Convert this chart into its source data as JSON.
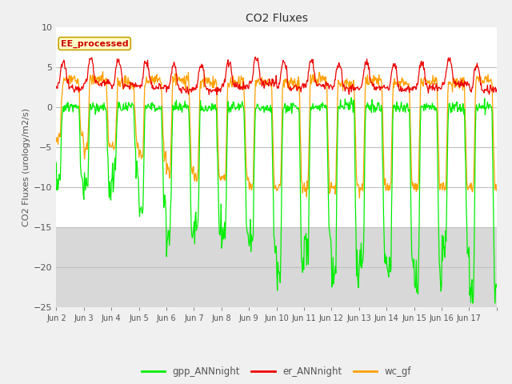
{
  "title": "CO2 Fluxes",
  "ylabel": "CO2 Fluxes (urology/m2/s)",
  "ylim": [
    -25,
    10
  ],
  "yticks": [
    -25,
    -20,
    -15,
    -10,
    -5,
    0,
    5,
    10
  ],
  "bg_color": "#f0f0f0",
  "ax_bg_color": "#e8e8e8",
  "ax_bg_upper": "#ffffff",
  "ax_bg_lower": "#d8d8d8",
  "legend_box_label": "EE_processed",
  "legend_box_facecolor": "#ffffc8",
  "legend_box_edgecolor": "#c8a000",
  "colors": {
    "gpp": "#00ee00",
    "er": "#ee0000",
    "wc": "#ffa000"
  },
  "legend_entries": [
    "gpp_ANNnight",
    "er_ANNnight",
    "wc_gf"
  ],
  "n_days": 16,
  "pts_per_day": 48,
  "x_tick_labels": [
    "Jun 2",
    "Jun 3",
    "Jun 4",
    "Jun 5",
    "Jun 6",
    "Jun 7",
    "Jun 8",
    "Jun 9",
    "Jun 10",
    "Jun 11",
    "Jun 12",
    "Jun 13",
    "Jun 14",
    "Jun 15",
    "Jun 16",
    "Jun 17"
  ],
  "figsize": [
    6.4,
    4.8
  ],
  "dpi": 100
}
